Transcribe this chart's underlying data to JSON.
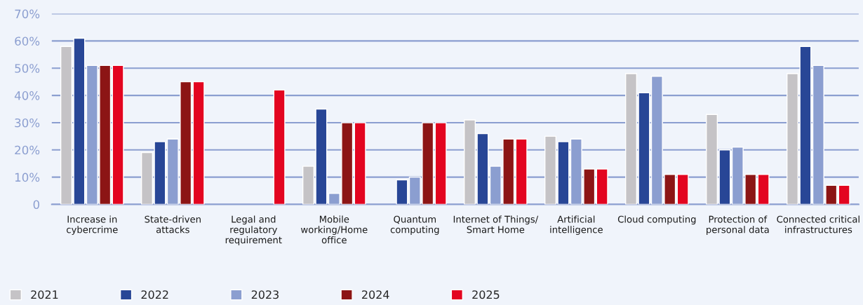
{
  "chart_data": {
    "type": "bar",
    "categories": [
      "Increase in\ncybercrime",
      "State-driven\nattacks",
      "Legal and\nregulatory\nrequirement",
      "Mobile\nworking/Home\noffice",
      "Quantum\ncomputing",
      "Internet of Things/\nSmart Home",
      "Artificial\nintelligence",
      "Cloud computing",
      "Protection of\npersonal data",
      "Connected critical\ninfrastructures"
    ],
    "series": [
      {
        "name": "2021",
        "color": "#c5c3c6",
        "values": [
          58,
          19,
          null,
          14,
          null,
          31,
          25,
          48,
          33,
          48
        ]
      },
      {
        "name": "2022",
        "color": "#284696",
        "values": [
          61,
          23,
          null,
          35,
          9,
          26,
          23,
          41,
          20,
          58
        ]
      },
      {
        "name": "2023",
        "color": "#8b9ed0",
        "values": [
          51,
          24,
          null,
          4,
          10,
          14,
          24,
          47,
          21,
          51
        ]
      },
      {
        "name": "2024",
        "color": "#8c1515",
        "values": [
          51,
          45,
          null,
          30,
          30,
          24,
          13,
          11,
          11,
          7
        ]
      },
      {
        "name": "2025",
        "color": "#e30520",
        "values": [
          51,
          45,
          42,
          30,
          30,
          24,
          13,
          11,
          11,
          7
        ]
      }
    ],
    "ylim": [
      0,
      70
    ],
    "yticks": [
      {
        "value": 0,
        "label": "0"
      },
      {
        "value": 10,
        "label": "10%"
      },
      {
        "value": 20,
        "label": "20%"
      },
      {
        "value": 30,
        "label": "30%"
      },
      {
        "value": 40,
        "label": "40%"
      },
      {
        "value": 50,
        "label": "50%"
      },
      {
        "value": 60,
        "label": "60%"
      },
      {
        "value": 70,
        "label": "70%"
      }
    ],
    "grid": "y",
    "legend": "bottom left"
  }
}
